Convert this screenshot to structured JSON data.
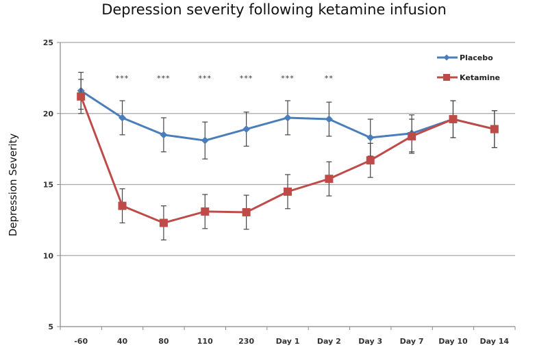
{
  "chart_data": {
    "type": "line",
    "title": "Depression severity following ketamine infusion",
    "xlabel": "",
    "ylabel": "Depression Severity",
    "categories": [
      "-60",
      "40",
      "80",
      "110",
      "230",
      "Day 1",
      "Day 2",
      "Day 3",
      "Day 7",
      "Day 10",
      "Day 14"
    ],
    "ylim": [
      5,
      25
    ],
    "yticks": [
      5,
      10,
      15,
      20,
      25
    ],
    "grid": true,
    "legend_position": "top-right",
    "series": [
      {
        "name": "Placebo",
        "color": "#4a7ebb",
        "marker": "diamond",
        "values": [
          21.6,
          19.7,
          18.5,
          18.1,
          18.9,
          19.7,
          19.6,
          18.3,
          18.6,
          19.6,
          18.9
        ],
        "error": [
          1.3,
          1.2,
          1.2,
          1.3,
          1.2,
          1.2,
          1.2,
          1.3,
          1.3,
          1.3,
          1.3
        ]
      },
      {
        "name": "Ketamine",
        "color": "#be4b48",
        "marker": "square",
        "values": [
          21.2,
          13.5,
          12.3,
          13.1,
          13.05,
          14.5,
          15.4,
          16.7,
          18.4,
          19.6,
          18.9
        ],
        "error": [
          1.2,
          1.2,
          1.2,
          1.2,
          1.2,
          1.2,
          1.2,
          1.2,
          1.2,
          1.3,
          1.3
        ]
      }
    ],
    "annotations": [
      {
        "category": "40",
        "text": "***"
      },
      {
        "category": "80",
        "text": "***"
      },
      {
        "category": "110",
        "text": "***"
      },
      {
        "category": "230",
        "text": "***"
      },
      {
        "category": "Day 1",
        "text": "***"
      },
      {
        "category": "Day 2",
        "text": "**"
      }
    ],
    "annotation_level": 22.5
  }
}
